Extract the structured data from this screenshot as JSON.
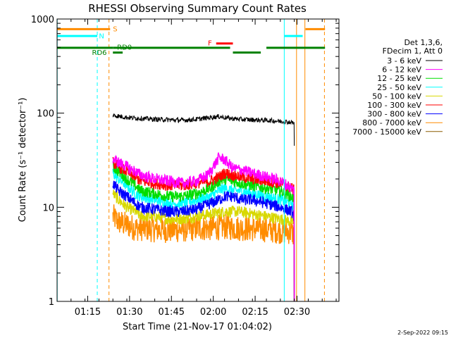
{
  "chart_data": {
    "type": "line",
    "title": "RHESSI Observing Summary Count Rates",
    "xlabel": "Start Time (21-Nov-17 01:04:02)",
    "ylabel": "Count Rate (s⁻¹ detector⁻¹)",
    "yscale": "log",
    "ylim": [
      1,
      1000
    ],
    "xlim_minutes_after_start": [
      0,
      101
    ],
    "x_tick_labels": [
      "01:15",
      "01:30",
      "01:45",
      "02:00",
      "02:15",
      "02:30"
    ],
    "x_tick_minutes": [
      10.97,
      25.97,
      40.97,
      55.97,
      70.97,
      85.97
    ],
    "y_tick_labels": [
      "1",
      "10",
      "100",
      "1000"
    ],
    "y_tick_values": [
      1,
      10,
      100,
      1000
    ],
    "legend_title": [
      "Det 1,3,6,",
      "FDecim 1, Att 0"
    ],
    "legend_placement": "right",
    "timestamp": "2-Sep-2022 09:15",
    "series": [
      {
        "name": "3 - 6 keV",
        "color": "#000000",
        "points": [
          [
            20,
            95
          ],
          [
            25,
            90
          ],
          [
            30,
            88
          ],
          [
            35,
            86
          ],
          [
            40,
            85
          ],
          [
            45,
            84
          ],
          [
            50,
            86
          ],
          [
            55,
            90
          ],
          [
            58,
            92
          ],
          [
            62,
            88
          ],
          [
            66,
            86
          ],
          [
            70,
            85
          ],
          [
            75,
            84
          ],
          [
            80,
            82
          ],
          [
            84,
            80
          ],
          [
            85,
            78
          ]
        ]
      },
      {
        "name": "6 - 12 keV",
        "color": "#ff00ff",
        "points": [
          [
            20,
            33
          ],
          [
            22,
            30
          ],
          [
            25,
            27
          ],
          [
            28,
            24
          ],
          [
            30,
            22
          ],
          [
            35,
            20
          ],
          [
            40,
            19
          ],
          [
            45,
            18
          ],
          [
            50,
            19
          ],
          [
            54,
            22
          ],
          [
            57,
            30
          ],
          [
            58,
            34
          ],
          [
            60,
            32
          ],
          [
            63,
            26
          ],
          [
            66,
            25
          ],
          [
            70,
            23
          ],
          [
            75,
            21
          ],
          [
            80,
            19
          ],
          [
            84,
            16
          ],
          [
            85,
            15
          ]
        ]
      },
      {
        "name": "12 - 25 keV",
        "color": "#00dd00",
        "points": [
          [
            20,
            27
          ],
          [
            22,
            24
          ],
          [
            25,
            20
          ],
          [
            28,
            17
          ],
          [
            30,
            15
          ],
          [
            35,
            14
          ],
          [
            40,
            13
          ],
          [
            45,
            13
          ],
          [
            50,
            14
          ],
          [
            55,
            16
          ],
          [
            58,
            19
          ],
          [
            60,
            20
          ],
          [
            63,
            19
          ],
          [
            66,
            18
          ],
          [
            70,
            17
          ],
          [
            75,
            16
          ],
          [
            80,
            15
          ],
          [
            84,
            13
          ],
          [
            85,
            12
          ]
        ]
      },
      {
        "name": "25 - 50 keV",
        "color": "#00ffff",
        "points": [
          [
            20,
            23
          ],
          [
            22,
            20
          ],
          [
            25,
            17
          ],
          [
            28,
            14
          ],
          [
            30,
            13
          ],
          [
            35,
            12
          ],
          [
            40,
            11
          ],
          [
            45,
            11
          ],
          [
            50,
            12
          ],
          [
            55,
            13
          ],
          [
            58,
            15
          ],
          [
            60,
            16
          ],
          [
            63,
            15
          ],
          [
            66,
            15
          ],
          [
            70,
            14
          ],
          [
            75,
            13
          ],
          [
            80,
            12
          ],
          [
            84,
            11
          ],
          [
            85,
            10
          ]
        ]
      },
      {
        "name": "50 - 100 keV",
        "color": "#d8d800",
        "points": [
          [
            20,
            14
          ],
          [
            22,
            12
          ],
          [
            25,
            10
          ],
          [
            28,
            9
          ],
          [
            30,
            8
          ],
          [
            35,
            8
          ],
          [
            40,
            7.5
          ],
          [
            45,
            7.5
          ],
          [
            50,
            8
          ],
          [
            55,
            8.5
          ],
          [
            60,
            9
          ],
          [
            65,
            9
          ],
          [
            70,
            8.5
          ],
          [
            75,
            8
          ],
          [
            80,
            7.5
          ],
          [
            85,
            7
          ]
        ]
      },
      {
        "name": "100 - 300 keV",
        "color": "#ff0000",
        "points": [
          [
            20,
            30
          ],
          [
            22,
            27
          ],
          [
            25,
            24
          ],
          [
            28,
            21
          ],
          [
            30,
            19
          ],
          [
            35,
            18
          ],
          [
            40,
            17
          ],
          [
            45,
            17
          ],
          [
            50,
            18
          ],
          [
            55,
            19
          ],
          [
            58,
            21
          ],
          [
            60,
            23
          ],
          [
            63,
            22
          ],
          [
            66,
            21
          ],
          [
            70,
            20
          ],
          [
            75,
            19
          ],
          [
            80,
            18
          ],
          [
            84,
            16
          ],
          [
            85,
            15
          ]
        ]
      },
      {
        "name": "300 - 800 keV",
        "color": "#0000ff",
        "points": [
          [
            20,
            18
          ],
          [
            22,
            15
          ],
          [
            25,
            13
          ],
          [
            28,
            11
          ],
          [
            30,
            10
          ],
          [
            35,
            9.5
          ],
          [
            40,
            9
          ],
          [
            45,
            9
          ],
          [
            50,
            9.5
          ],
          [
            55,
            11
          ],
          [
            58,
            12
          ],
          [
            60,
            13
          ],
          [
            63,
            13
          ],
          [
            66,
            12
          ],
          [
            70,
            12
          ],
          [
            75,
            11
          ],
          [
            80,
            10
          ],
          [
            84,
            9
          ],
          [
            85,
            8
          ]
        ]
      },
      {
        "name": "800 - 7000 keV",
        "color": "#ff8c00",
        "points": [
          [
            20,
            8
          ],
          [
            22,
            7
          ],
          [
            25,
            6.5
          ],
          [
            28,
            6
          ],
          [
            30,
            6
          ],
          [
            35,
            5.8
          ],
          [
            40,
            5.7
          ],
          [
            45,
            5.8
          ],
          [
            50,
            6
          ],
          [
            55,
            6
          ],
          [
            60,
            6.2
          ],
          [
            65,
            6
          ],
          [
            70,
            5.9
          ],
          [
            75,
            5.8
          ],
          [
            80,
            5.6
          ],
          [
            84,
            5.5
          ],
          [
            85,
            5
          ]
        ]
      },
      {
        "name": "7000 - 15000 keV",
        "color": "#8b5a00",
        "points": []
      }
    ],
    "state_flags": [
      {
        "label": "S",
        "color": "#ff8c00",
        "segments": [
          [
            0,
            19
          ],
          [
            89,
            96
          ]
        ],
        "value": 780
      },
      {
        "label": "N",
        "color": "#00ffff",
        "segments": [
          [
            0,
            14.4
          ],
          [
            81.5,
            88
          ]
        ],
        "value": 660
      },
      {
        "label": "F",
        "color": "#ff0000",
        "segments": [
          [
            57,
            63
          ]
        ],
        "value": 550
      },
      {
        "label": "RD0",
        "color": "#008000",
        "segments": [
          [
            0,
            20
          ],
          [
            20,
            62
          ],
          [
            75,
            96
          ]
        ],
        "value": 495
      },
      {
        "label": "RD6",
        "color": "#008000",
        "segments": [
          [
            20,
            23.5
          ],
          [
            63,
            73
          ]
        ],
        "value": 440
      }
    ],
    "vertical_lines": [
      {
        "x": 0.05,
        "color": "#00ffff",
        "style": "solid"
      },
      {
        "x": 14.4,
        "color": "#00ffff",
        "style": "dashed"
      },
      {
        "x": 18.6,
        "color": "#ff8c00",
        "style": "dashed"
      },
      {
        "x": 81.4,
        "color": "#00ffff",
        "style": "solid"
      },
      {
        "x": 85.8,
        "color": "#ff8c00",
        "style": "solid"
      },
      {
        "x": 88.8,
        "color": "#ff8c00",
        "style": "solid"
      },
      {
        "x": 95.8,
        "color": "#ff8c00",
        "style": "dashed"
      }
    ]
  }
}
